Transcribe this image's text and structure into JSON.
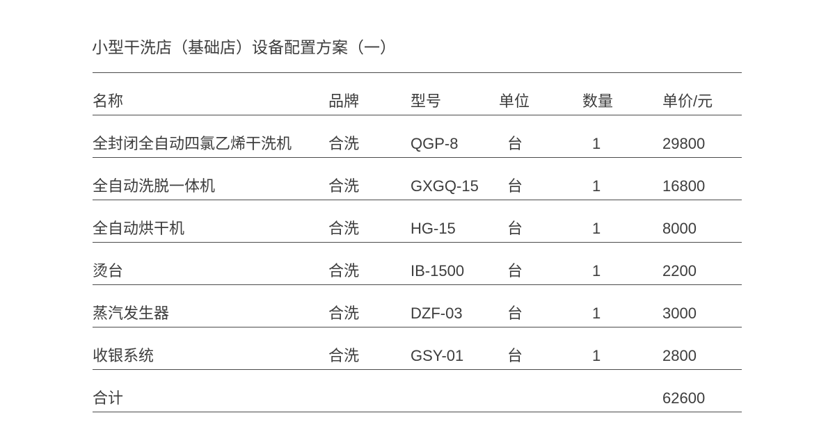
{
  "title": "小型干洗店（基础店）设备配置方案（一）",
  "colors": {
    "background": "#ffffff",
    "text": "#3d3d3d",
    "rule_line": "#4a4a4a"
  },
  "table": {
    "columns": [
      {
        "key": "name",
        "label": "名称"
      },
      {
        "key": "brand",
        "label": "品牌"
      },
      {
        "key": "model",
        "label": "型号"
      },
      {
        "key": "unit",
        "label": "单位"
      },
      {
        "key": "qty",
        "label": "数量"
      },
      {
        "key": "price",
        "label": "单价/元"
      }
    ],
    "rows": [
      [
        "全封闭全自动四氯乙烯干洗机",
        "合洗",
        "QGP-8",
        "台",
        "1",
        "29800"
      ],
      [
        "全自动洗脱一体机",
        "合洗",
        "GXGQ-15",
        "台",
        "1",
        "16800"
      ],
      [
        "全自动烘干机",
        "合洗",
        "HG-15",
        "台",
        "1",
        "8000"
      ],
      [
        "烫台",
        "合洗",
        "IB-1500",
        "台",
        "1",
        "2200"
      ],
      [
        "蒸汽发生器",
        "合洗",
        "DZF-03",
        "台",
        "1",
        "3000"
      ],
      [
        "收银系统",
        "合洗",
        "GSY-01",
        "台",
        "1",
        "2800"
      ]
    ],
    "total_row": {
      "label": "合计",
      "value": "62600"
    }
  }
}
